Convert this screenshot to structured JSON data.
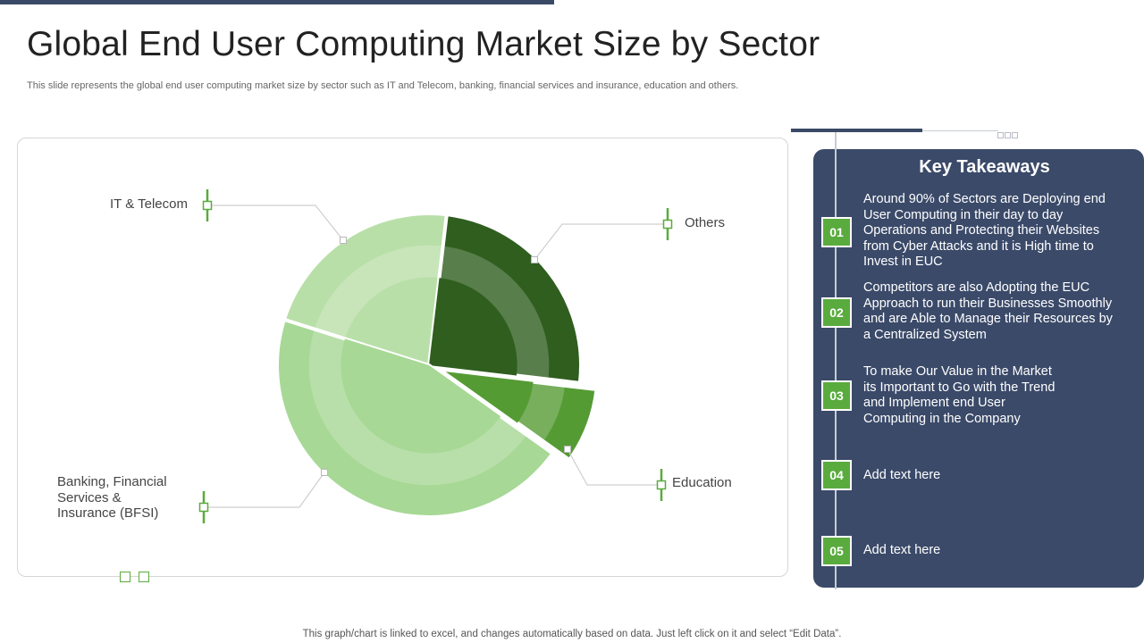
{
  "header": {
    "title": "Global End User Computing Market Size by Sector",
    "subtitle": "This slide represents the global end user computing market size by sector such as IT and Telecom, banking, financial services and insurance, education and others."
  },
  "chart_data": {
    "type": "pie",
    "title": "",
    "categories": [
      "IT & Telecom",
      "Others",
      "Education",
      "Banking, Financial Services & Insurance (BFSI)"
    ],
    "values": [
      22,
      25,
      8,
      45
    ],
    "colors": [
      "#b9dfa8",
      "#2f5e1f",
      "#559b34",
      "#a7d895"
    ],
    "exploded": [
      false,
      false,
      true,
      false
    ],
    "labels": {
      "it_telecom": "IT & Telecom",
      "others": "Others",
      "education": "Education",
      "bfsi_line1": "Banking, Financial",
      "bfsi_line2": "Services &",
      "bfsi_line3": "Insurance (BFSI)"
    }
  },
  "takeaways": {
    "title": "Key Takeaways",
    "items": [
      {
        "num": "01",
        "lines": [
          "Around 90% of Sectors are Deploying end",
          "User Computing in their day to day",
          "Operations and Protecting their Websites",
          "from Cyber Attacks and it is High time to",
          "Invest in EUC"
        ]
      },
      {
        "num": "02",
        "lines": [
          "Competitors are also Adopting the EUC",
          "Approach to run their Businesses Smoothly",
          "and are Able to Manage their Resources by",
          "a Centralized System"
        ]
      },
      {
        "num": "03",
        "lines": [
          "To make Our Value  in the Market",
          "its Important to Go with the Trend",
          "and Implement end User",
          "Computing in the Company"
        ]
      },
      {
        "num": "04",
        "lines": [
          "Add text here"
        ]
      },
      {
        "num": "05",
        "lines": [
          "Add text here"
        ]
      }
    ]
  },
  "footer": {
    "note": "This graph/chart is linked to excel,  and changes automatically based on data. Just left click on it and select “Edit Data”."
  }
}
